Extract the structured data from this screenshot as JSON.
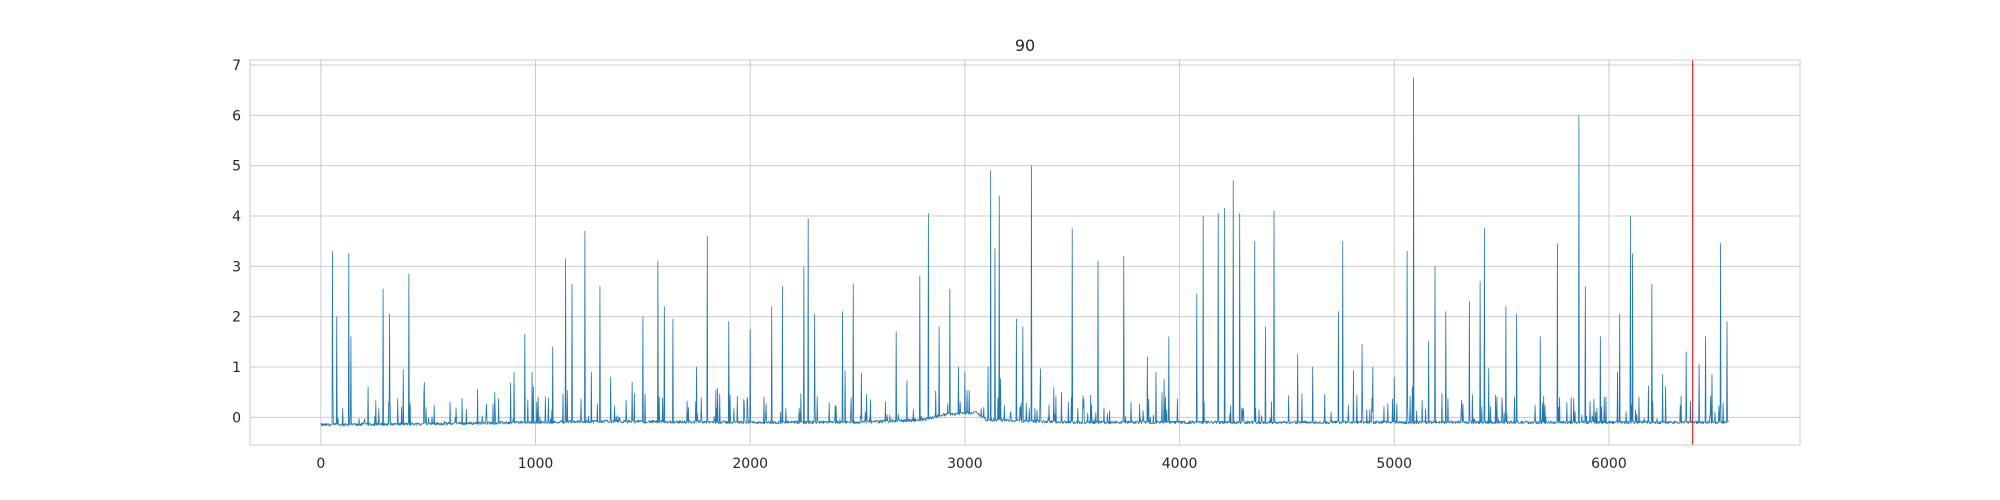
{
  "chart_data": {
    "type": "line",
    "title": "90",
    "xlabel": "",
    "ylabel": "",
    "xlim": [
      -330,
      6890
    ],
    "ylim": [
      -0.55,
      7.1
    ],
    "x_ticks": [
      0,
      1000,
      2000,
      3000,
      4000,
      5000,
      6000
    ],
    "y_ticks": [
      0,
      1,
      2,
      3,
      4,
      5,
      6,
      7
    ],
    "x_tick_labels": [
      "0",
      "1000",
      "2000",
      "3000",
      "4000",
      "5000",
      "6000"
    ],
    "y_tick_labels": [
      "0",
      "1",
      "2",
      "3",
      "4",
      "5",
      "6",
      "7"
    ],
    "grid": true,
    "legend": "none",
    "n_points": 6560,
    "baseline_profile": [
      [
        0,
        -0.15
      ],
      [
        500,
        -0.13
      ],
      [
        1000,
        -0.1
      ],
      [
        1300,
        -0.08
      ],
      [
        1600,
        -0.09
      ],
      [
        2000,
        -0.1
      ],
      [
        2500,
        -0.1
      ],
      [
        2800,
        -0.05
      ],
      [
        2900,
        0.05
      ],
      [
        3050,
        0.1
      ],
      [
        3100,
        -0.05
      ],
      [
        3500,
        -0.1
      ],
      [
        4000,
        -0.1
      ],
      [
        4500,
        -0.1
      ],
      [
        5000,
        -0.1
      ],
      [
        5500,
        -0.1
      ],
      [
        6000,
        -0.1
      ],
      [
        6560,
        -0.1
      ]
    ],
    "peaks": [
      [
        55,
        3.3
      ],
      [
        75,
        2.0
      ],
      [
        130,
        3.25
      ],
      [
        140,
        1.6
      ],
      [
        220,
        0.6
      ],
      [
        290,
        2.55
      ],
      [
        320,
        2.05
      ],
      [
        410,
        2.85
      ],
      [
        480,
        0.45
      ],
      [
        730,
        0.55
      ],
      [
        810,
        0.5
      ],
      [
        900,
        0.9
      ],
      [
        950,
        1.65
      ],
      [
        990,
        0.6
      ],
      [
        1080,
        1.4
      ],
      [
        1140,
        3.15
      ],
      [
        1170,
        2.65
      ],
      [
        1230,
        3.7
      ],
      [
        1260,
        0.9
      ],
      [
        1300,
        2.6
      ],
      [
        1350,
        0.8
      ],
      [
        1450,
        0.7
      ],
      [
        1500,
        2.0
      ],
      [
        1570,
        3.1
      ],
      [
        1600,
        2.2
      ],
      [
        1640,
        1.95
      ],
      [
        1750,
        1.0
      ],
      [
        1800,
        3.6
      ],
      [
        1900,
        1.9
      ],
      [
        2000,
        1.75
      ],
      [
        2100,
        2.2
      ],
      [
        2150,
        2.6
      ],
      [
        2250,
        3.0
      ],
      [
        2270,
        3.95
      ],
      [
        2300,
        2.05
      ],
      [
        2430,
        2.1
      ],
      [
        2480,
        2.65
      ],
      [
        2560,
        0.35
      ],
      [
        2680,
        1.7
      ],
      [
        2790,
        2.8
      ],
      [
        2830,
        4.05
      ],
      [
        2880,
        1.8
      ],
      [
        2930,
        2.55
      ],
      [
        2970,
        1.0
      ],
      [
        3000,
        0.9
      ],
      [
        3120,
        4.9
      ],
      [
        3140,
        3.35
      ],
      [
        3160,
        4.4
      ],
      [
        3240,
        1.95
      ],
      [
        3270,
        1.8
      ],
      [
        3310,
        5.0
      ],
      [
        3350,
        0.5
      ],
      [
        3450,
        0.5
      ],
      [
        3500,
        3.75
      ],
      [
        3620,
        3.1
      ],
      [
        3740,
        3.2
      ],
      [
        3850,
        1.2
      ],
      [
        3950,
        1.6
      ],
      [
        4080,
        2.45
      ],
      [
        4110,
        4.0
      ],
      [
        4180,
        4.05
      ],
      [
        4210,
        4.15
      ],
      [
        4250,
        4.7
      ],
      [
        4280,
        4.05
      ],
      [
        4350,
        3.5
      ],
      [
        4400,
        1.8
      ],
      [
        4440,
        4.1
      ],
      [
        4550,
        1.25
      ],
      [
        4620,
        1.0
      ],
      [
        4740,
        2.1
      ],
      [
        4760,
        3.5
      ],
      [
        4850,
        1.45
      ],
      [
        4900,
        1.0
      ],
      [
        5000,
        0.8
      ],
      [
        5060,
        3.3
      ],
      [
        5090,
        6.75
      ],
      [
        5160,
        1.5
      ],
      [
        5190,
        3.0
      ],
      [
        5240,
        2.1
      ],
      [
        5350,
        2.3
      ],
      [
        5400,
        2.7
      ],
      [
        5420,
        3.75
      ],
      [
        5520,
        2.2
      ],
      [
        5570,
        2.05
      ],
      [
        5680,
        1.6
      ],
      [
        5760,
        3.45
      ],
      [
        5860,
        6.0
      ],
      [
        5890,
        2.6
      ],
      [
        5960,
        1.6
      ],
      [
        6050,
        2.05
      ],
      [
        6100,
        4.0
      ],
      [
        6110,
        3.25
      ],
      [
        6200,
        2.65
      ],
      [
        6250,
        0.85
      ],
      [
        6360,
        1.3
      ],
      [
        6420,
        1.05
      ],
      [
        6450,
        1.6
      ],
      [
        6480,
        0.85
      ],
      [
        6520,
        3.45
      ],
      [
        6550,
        1.9
      ]
    ],
    "vertical_line": {
      "x": 6390,
      "color": "#ff0000"
    },
    "line_color": "#1f77b4",
    "grid_color": "#cccccc",
    "spine_color": "#cccccc"
  }
}
